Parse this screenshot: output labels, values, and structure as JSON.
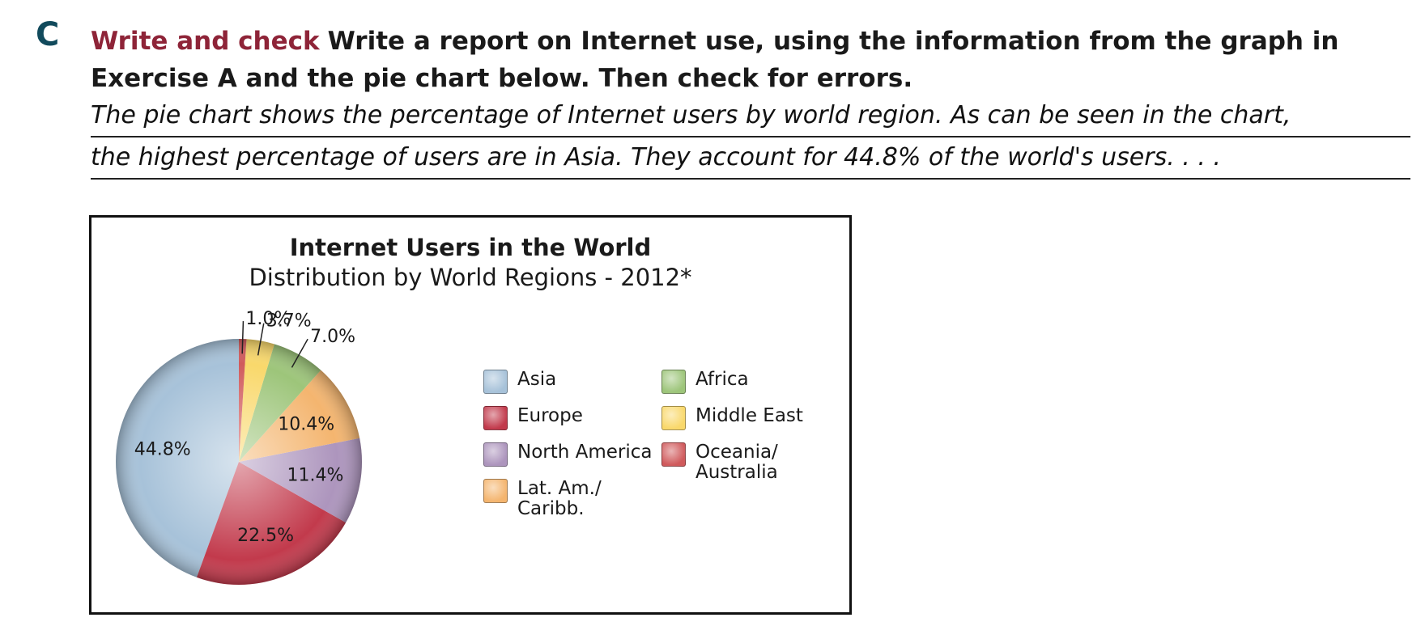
{
  "section": {
    "letter": "C",
    "lead": "Write and check",
    "instruction": "Write a report on Internet use, using the information from the graph in Exercise A and the pie chart below. Then check for errors."
  },
  "handwriting": {
    "line1": "The pie chart shows the percentage of Internet users by world region. As can be seen in the chart,",
    "line2": "the highest percentage of users are in Asia. They account for 44.8% of the world's users. . . ."
  },
  "chart_data": {
    "type": "pie",
    "title": "Internet Users in the World",
    "subtitle": "Distribution by World Regions - 2012*",
    "slices": [
      {
        "name": "Asia",
        "value": 44.8,
        "label": "44.8%",
        "color": "#a7c2d9"
      },
      {
        "name": "Europe",
        "value": 22.5,
        "label": "22.5%",
        "color": "#c23a4c"
      },
      {
        "name": "North America",
        "value": 11.4,
        "label": "11.4%",
        "color": "#ad95bd"
      },
      {
        "name": "Lat. Am./\nCaribb.",
        "value": 10.4,
        "label": "10.4%",
        "color": "#f4b56f"
      },
      {
        "name": "Africa",
        "value": 7.0,
        "label": "7.0%",
        "color": "#9dc57a"
      },
      {
        "name": "Middle East",
        "value": 3.7,
        "label": "3.7%",
        "color": "#f9d86b"
      },
      {
        "name": "Oceania/\nAustralia",
        "value": 1.0,
        "label": "1.0%",
        "color": "#d05a5c"
      }
    ],
    "legend_placement": "right"
  }
}
